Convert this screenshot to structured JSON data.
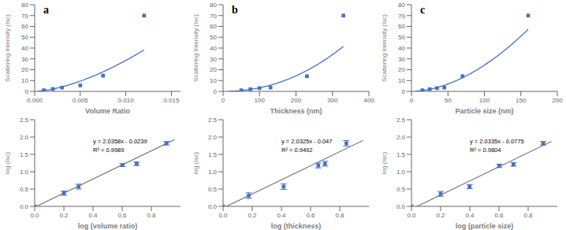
{
  "chart_data": [
    {
      "type": "scatter",
      "annotation": "a",
      "xlabel": "Volume Ratio",
      "ylabel": "Scattering Intensity (Isc)",
      "xlim": [
        0,
        0.016
      ],
      "ylim": [
        0,
        80
      ],
      "xticks": [
        {
          "value": 0,
          "label": "0.000"
        },
        0.005,
        {
          "value": 0.01,
          "label": "0.010"
        },
        0.015
      ],
      "yticks": [
        0,
        10,
        20,
        30,
        40,
        50,
        60,
        70,
        80
      ],
      "series": [
        {
          "type": "line",
          "color": "#4472C4",
          "exponent": 1.59762,
          "log_coefficient": 10.71027,
          "x_range": [
            0.0003,
            0.012
          ]
        },
        {
          "type": "scatter",
          "color": "#4472C4",
          "marker": "square",
          "x": [
            0.001,
            0.002,
            0.003,
            0.005,
            0.0075,
            0.012
          ],
          "values": [
            1.0,
            2.2,
            3.5,
            5.5,
            14.5,
            70.0
          ]
        }
      ]
    },
    {
      "type": "scatter",
      "annotation": "b",
      "xlabel": "Thickness (nm)",
      "ylabel": "Scattering Intensity (Isc)",
      "xlim": [
        0,
        400
      ],
      "ylim": [
        0,
        80
      ],
      "xticks": [
        0,
        100,
        200,
        300,
        400
      ],
      "yticks": [
        0,
        10,
        20,
        30,
        40,
        50,
        60,
        70,
        80
      ],
      "series": [
        {
          "type": "line",
          "color": "#4472C4",
          "exponent": 2.1225,
          "log_coefficient": -8.581952,
          "x_range": [
            15,
            330
          ]
        },
        {
          "type": "scatter",
          "color": "#4472C4",
          "marker": "square",
          "x": [
            50,
            75,
            100,
            130,
            230,
            330
          ],
          "values": [
            1.0,
            2.0,
            3.0,
            3.5,
            14.0,
            70.0
          ]
        }
      ]
    },
    {
      "type": "scatter",
      "annotation": "c",
      "xlabel": "Particle size (nm)",
      "ylabel": "Scattering Intensity (Isc)",
      "xlim": [
        0,
        200
      ],
      "ylim": [
        0,
        80
      ],
      "xticks": [
        0,
        50,
        100,
        150,
        200
      ],
      "yticks": [
        0,
        10,
        20,
        30,
        40,
        50,
        60,
        70,
        80
      ],
      "series": [
        {
          "type": "line",
          "color": "#4472C4",
          "exponent": 1.831589,
          "log_coefficient": -5.247488,
          "x_range": [
            4.5,
            160
          ]
        },
        {
          "type": "scatter",
          "color": "#4472C4",
          "marker": "square",
          "x": [
            15,
            25,
            35,
            45,
            70,
            160
          ],
          "values": [
            1.0,
            2.0,
            3.0,
            3.5,
            14.0,
            70.0
          ]
        }
      ]
    },
    {
      "type": "scatter",
      "annotation": "y = 2.0358x - 0.0239\nR² = 0.9989",
      "xlabel": "log (volume ratio)",
      "ylabel": "log (Isc)",
      "xlim": [
        0,
        1.0
      ],
      "ylim": [
        0,
        2.5
      ],
      "xticks": [
        {
          "value": 0,
          "label": "0.0"
        },
        0.2,
        0.4,
        0.6,
        0.8
      ],
      "yticks": [
        {
          "value": 0,
          "label": "0.0"
        },
        0.5,
        {
          "value": 1,
          "label": "1.0"
        },
        1.5,
        {
          "value": 2,
          "label": "2.0"
        },
        2.5
      ],
      "series": [
        {
          "type": "line",
          "color": "#808080",
          "slope": 2.0358,
          "intercept": -0.0239,
          "x_range": [
            0.0,
            0.96
          ]
        },
        {
          "type": "scatter",
          "color": "#4472C4",
          "marker": "square",
          "x": [
            0.0,
            0.2,
            0.301,
            0.602,
            0.699,
            0.903
          ],
          "values": [
            0.0,
            0.38,
            0.57,
            1.19,
            1.23,
            1.82
          ],
          "errors": [
            0.0,
            0.06,
            0.07,
            0.04,
            0.05,
            0.05
          ]
        }
      ]
    },
    {
      "type": "scatter",
      "annotation": "y = 2.0325x - 0.047\nR² = 0.9492",
      "xlabel": "log (thickness)",
      "ylabel": "log (Isc)",
      "xlim": [
        0,
        1.0
      ],
      "ylim": [
        0,
        2.5
      ],
      "xticks": [
        {
          "value": 0,
          "label": "0.0"
        },
        0.2,
        0.4,
        0.6,
        0.8
      ],
      "yticks": [
        {
          "value": 0,
          "label": "0.0"
        },
        0.5,
        {
          "value": 1,
          "label": "1.0"
        },
        1.5,
        {
          "value": 2,
          "label": "2.0"
        },
        2.5
      ],
      "series": [
        {
          "type": "line",
          "color": "#808080",
          "slope": 2.0325,
          "intercept": -0.047,
          "x_range": [
            0.0,
            0.96
          ]
        },
        {
          "type": "scatter",
          "color": "#4472C4",
          "marker": "square",
          "x": [
            0.0,
            0.176,
            0.415,
            0.653,
            0.699,
            0.845
          ],
          "values": [
            0.0,
            0.31,
            0.57,
            1.18,
            1.23,
            1.82
          ],
          "errors": [
            0.0,
            0.08,
            0.08,
            0.07,
            0.07,
            0.08
          ]
        }
      ]
    },
    {
      "type": "scatter",
      "annotation": "y = 2.0335x - 0.0775\nR² = 0.9804",
      "xlabel": "log (particle size)",
      "ylabel": "log (Isc)",
      "xlim": [
        0,
        1.0
      ],
      "ylim": [
        0,
        2.5
      ],
      "xticks": [
        {
          "value": 0,
          "label": "0.0"
        },
        0.2,
        0.4,
        0.6,
        0.8
      ],
      "yticks": [
        {
          "value": 0,
          "label": "0.0"
        },
        0.5,
        {
          "value": 1,
          "label": "1.0"
        },
        1.5,
        {
          "value": 2,
          "label": "2.0"
        },
        2.5
      ],
      "series": [
        {
          "type": "line",
          "color": "#808080",
          "slope": 2.0335,
          "intercept": -0.0775,
          "x_range": [
            0.0,
            0.96
          ]
        },
        {
          "type": "scatter",
          "color": "#4472C4",
          "marker": "square",
          "x": [
            0.0,
            0.2,
            0.398,
            0.602,
            0.699,
            0.903
          ],
          "values": [
            0.0,
            0.36,
            0.57,
            1.17,
            1.21,
            1.82
          ],
          "errors": [
            0.0,
            0.07,
            0.06,
            0.05,
            0.05,
            0.05
          ]
        }
      ]
    }
  ]
}
